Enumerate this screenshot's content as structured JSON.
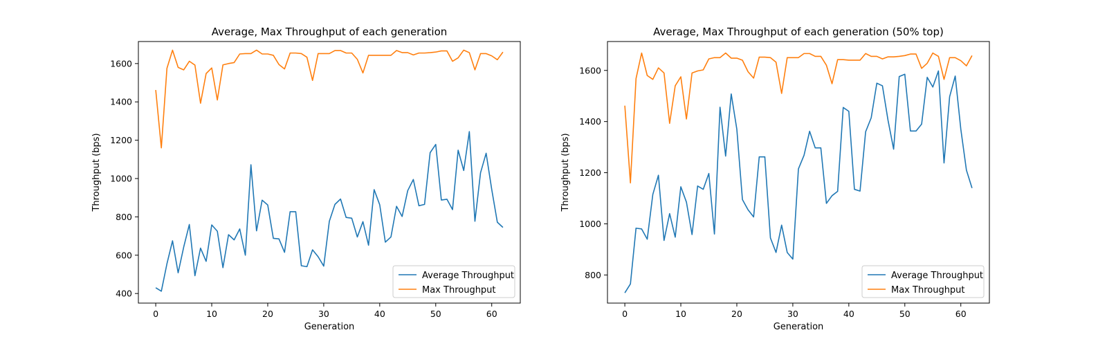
{
  "chart_data": [
    {
      "type": "line",
      "title": "Average, Max Throughput of each generation",
      "xlabel": "Generation",
      "ylabel": "Throughput (bps)",
      "xlim": [
        -3.1,
        65.1
      ],
      "ylim": [
        350,
        1715
      ],
      "xticks": [
        0,
        10,
        20,
        30,
        40,
        50,
        60
      ],
      "yticks": [
        400,
        600,
        800,
        1000,
        1200,
        1400,
        1600
      ],
      "legend_position": "lower right",
      "grid": false,
      "series": [
        {
          "name": "Average Throughput",
          "color": "#1f77b4",
          "values": [
            430,
            412,
            555,
            675,
            508,
            643,
            760,
            493,
            637,
            568,
            758,
            725,
            535,
            707,
            680,
            737,
            600,
            1072,
            727,
            887,
            862,
            688,
            685,
            615,
            827,
            827,
            545,
            540,
            628,
            592,
            543,
            777,
            865,
            893,
            797,
            793,
            695,
            775,
            652,
            942,
            863,
            668,
            695,
            855,
            802,
            937,
            995,
            858,
            865,
            1135,
            1178,
            888,
            892,
            838,
            1148,
            1042,
            1245,
            777,
            1030,
            1132,
            943,
            772,
            745
          ]
        },
        {
          "name": "Max Throughput",
          "color": "#ff7f0e",
          "values": [
            1462,
            1160,
            1575,
            1670,
            1580,
            1567,
            1612,
            1592,
            1393,
            1548,
            1577,
            1410,
            1593,
            1600,
            1605,
            1650,
            1652,
            1652,
            1670,
            1650,
            1650,
            1643,
            1595,
            1572,
            1655,
            1655,
            1652,
            1633,
            1512,
            1652,
            1652,
            1652,
            1668,
            1668,
            1655,
            1655,
            1622,
            1551,
            1643,
            1643,
            1643,
            1643,
            1643,
            1668,
            1657,
            1657,
            1645,
            1655,
            1655,
            1657,
            1660,
            1666,
            1666,
            1612,
            1630,
            1670,
            1657,
            1567,
            1652,
            1652,
            1640,
            1620,
            1660
          ]
        }
      ]
    },
    {
      "type": "line",
      "title": "Average, Max Throughput of each generation (50% top)",
      "xlabel": "Generation",
      "ylabel": "Throughput (bps)",
      "xlim": [
        -3.1,
        65.1
      ],
      "ylim": [
        690,
        1713
      ],
      "xticks": [
        0,
        10,
        20,
        30,
        40,
        50,
        60
      ],
      "yticks": [
        800,
        1000,
        1200,
        1400,
        1600
      ],
      "legend_position": "lower right",
      "grid": false,
      "series": [
        {
          "name": "Average Throughput",
          "color": "#1f77b4",
          "values": [
            730,
            765,
            983,
            980,
            940,
            1115,
            1190,
            935,
            1040,
            948,
            1145,
            1085,
            958,
            1148,
            1135,
            1197,
            960,
            1456,
            1265,
            1508,
            1370,
            1095,
            1055,
            1027,
            1262,
            1262,
            945,
            888,
            995,
            888,
            862,
            1215,
            1268,
            1362,
            1297,
            1297,
            1080,
            1110,
            1127,
            1455,
            1440,
            1135,
            1128,
            1360,
            1415,
            1550,
            1540,
            1405,
            1292,
            1576,
            1585,
            1363,
            1363,
            1390,
            1573,
            1535,
            1598,
            1238,
            1497,
            1578,
            1370,
            1210,
            1140
          ]
        },
        {
          "name": "Max Throughput",
          "color": "#ff7f0e",
          "values": [
            1462,
            1160,
            1568,
            1668,
            1580,
            1565,
            1610,
            1590,
            1393,
            1540,
            1575,
            1410,
            1590,
            1598,
            1602,
            1645,
            1650,
            1650,
            1668,
            1648,
            1648,
            1640,
            1595,
            1570,
            1652,
            1652,
            1650,
            1632,
            1510,
            1650,
            1650,
            1650,
            1666,
            1666,
            1655,
            1655,
            1620,
            1548,
            1642,
            1642,
            1640,
            1640,
            1640,
            1666,
            1655,
            1655,
            1645,
            1653,
            1653,
            1655,
            1658,
            1664,
            1664,
            1608,
            1628,
            1668,
            1655,
            1565,
            1650,
            1650,
            1638,
            1618,
            1658
          ]
        }
      ]
    }
  ]
}
